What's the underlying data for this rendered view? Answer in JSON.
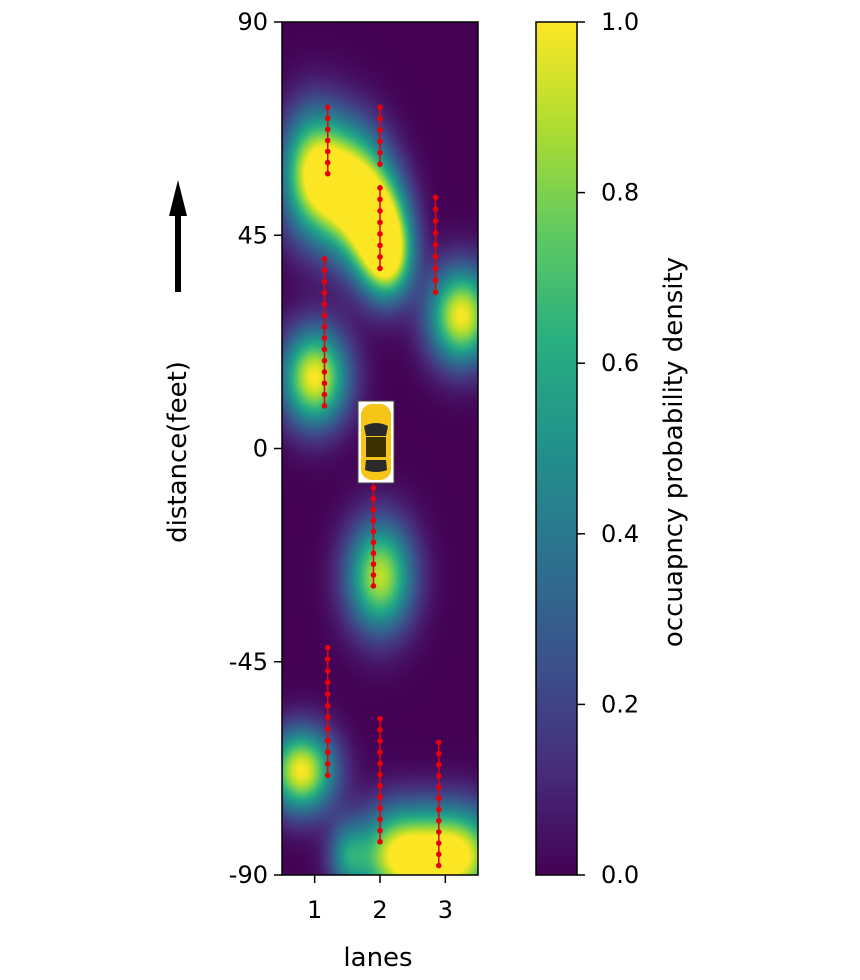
{
  "chart_data": {
    "type": "heatmap",
    "title": "",
    "xlabel": "lanes",
    "ylabel": "distance(feet)",
    "x_ticks": [
      "1",
      "2",
      "3"
    ],
    "y_ticks": [
      "90",
      "45",
      "0",
      "-45",
      "-90"
    ],
    "y_tick_values": [
      90,
      45,
      0,
      -45,
      -90
    ],
    "xlim": [
      0.5,
      3.5
    ],
    "ylim": [
      -90,
      90
    ],
    "colormap": "viridis",
    "colorbar": {
      "label": "occuapncy probability density",
      "ticks": [
        "0.0",
        "0.2",
        "0.4",
        "0.6",
        "0.8",
        "1.0"
      ],
      "tick_values": [
        0.0,
        0.2,
        0.4,
        0.6,
        0.8,
        1.0
      ],
      "range": [
        0,
        1
      ]
    },
    "density_blobs": [
      {
        "lane": 1.0,
        "distance": 58,
        "sx": 0.35,
        "sy": 9,
        "amp": 1.0
      },
      {
        "lane": 1.6,
        "distance": 54,
        "sx": 0.35,
        "sy": 9,
        "amp": 1.0
      },
      {
        "lane": 2.0,
        "distance": 46,
        "sx": 0.3,
        "sy": 8,
        "amp": 1.0
      },
      {
        "lane": 2.15,
        "distance": 40,
        "sx": 0.25,
        "sy": 6,
        "amp": 0.6
      },
      {
        "lane": 3.25,
        "distance": 28,
        "sx": 0.35,
        "sy": 7,
        "amp": 1.0
      },
      {
        "lane": 1.0,
        "distance": 15,
        "sx": 0.35,
        "sy": 7,
        "amp": 1.0
      },
      {
        "lane": 2.0,
        "distance": -27,
        "sx": 0.35,
        "sy": 8,
        "amp": 0.9
      },
      {
        "lane": 0.8,
        "distance": -68,
        "sx": 0.35,
        "sy": 6,
        "amp": 1.0
      },
      {
        "lane": 2.3,
        "distance": -86,
        "sx": 0.45,
        "sy": 7,
        "amp": 1.0
      },
      {
        "lane": 3.2,
        "distance": -86,
        "sx": 0.45,
        "sy": 7,
        "amp": 1.0
      },
      {
        "lane": 1.5,
        "distance": -86,
        "sx": 0.2,
        "sy": 5,
        "amp": 0.4
      }
    ],
    "trajectories": [
      {
        "lane": 1.2,
        "from": 58,
        "to": 72
      },
      {
        "lane": 2.0,
        "from": 60,
        "to": 72
      },
      {
        "lane": 2.0,
        "from": 38,
        "to": 55
      },
      {
        "lane": 2.85,
        "from": 33,
        "to": 53
      },
      {
        "lane": 1.15,
        "from": 9,
        "to": 40
      },
      {
        "lane": 1.9,
        "from": -29,
        "to": -6
      },
      {
        "lane": 1.2,
        "from": -69,
        "to": -42
      },
      {
        "lane": 2.0,
        "from": -83,
        "to": -57
      },
      {
        "lane": 2.9,
        "from": -88,
        "to": -62
      }
    ],
    "trajectory_color": "#e8000b",
    "ego_vehicle": {
      "lane": 1.97,
      "distance": 0,
      "color": "#f5c518"
    },
    "direction_arrow": "up-arrow-icon"
  }
}
